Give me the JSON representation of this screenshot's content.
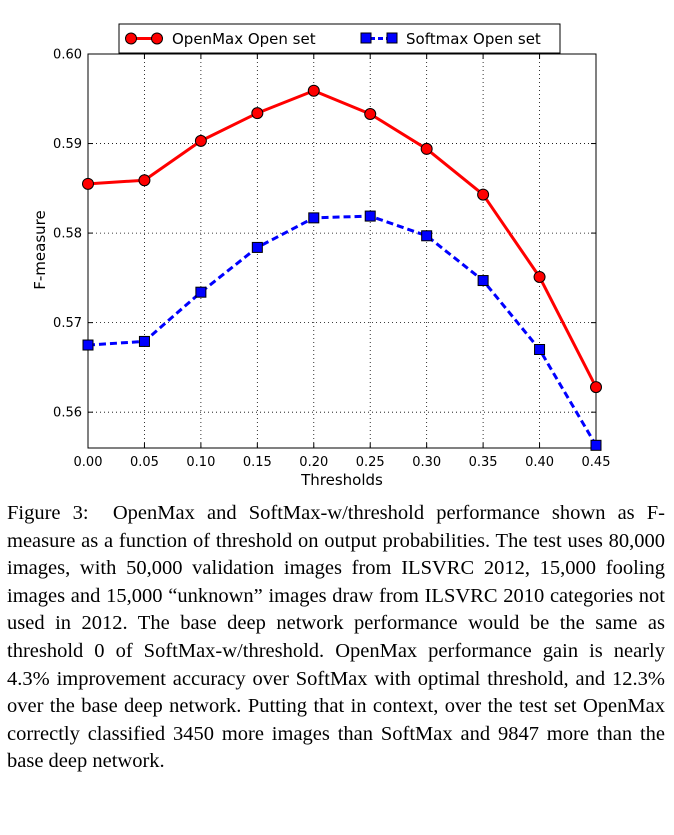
{
  "chart_data": {
    "type": "line",
    "xlabel": "Thresholds",
    "ylabel": "F-measure",
    "x": [
      0.0,
      0.05,
      0.1,
      0.15,
      0.2,
      0.25,
      0.3,
      0.35,
      0.4,
      0.45
    ],
    "x_tick_labels": [
      "0.00",
      "0.05",
      "0.10",
      "0.15",
      "0.20",
      "0.25",
      "0.30",
      "0.35",
      "0.40",
      "0.45"
    ],
    "xlim": [
      0.0,
      0.45
    ],
    "ylim": [
      0.556,
      0.6
    ],
    "y_ticks": [
      0.56,
      0.57,
      0.58,
      0.59,
      0.6
    ],
    "y_tick_labels": [
      "0.56",
      "0.57",
      "0.58",
      "0.59",
      "0.60"
    ],
    "grid": true,
    "legend_position": "top",
    "series": [
      {
        "name": "OpenMax Open set",
        "color": "#ff0000",
        "marker": "circle",
        "line_style": "solid",
        "values": [
          0.5855,
          0.5859,
          0.5903,
          0.5934,
          0.5959,
          0.5933,
          0.5894,
          0.5843,
          0.5751,
          0.5628
        ]
      },
      {
        "name": "Softmax Open set",
        "color": "#0000ff",
        "marker": "square",
        "line_style": "dashed",
        "values": [
          0.5675,
          0.5679,
          0.5734,
          0.5784,
          0.5817,
          0.5819,
          0.5797,
          0.5747,
          0.567,
          0.5563
        ]
      }
    ]
  },
  "caption": {
    "label": "Figure 3:",
    "text": "OpenMax and SoftMax-w/threshold performance shown as F-measure as a function of threshold on output probabilities. The test uses 80,000 images, with 50,000 validation images from ILSVRC 2012, 15,000 fooling images and 15,000 “unknown” images draw from ILSVRC 2010 categories not used in 2012. The base deep network performance would be the same as threshold 0 of SoftMax-w/threshold. OpenMax performance gain is nearly 4.3% improvement accuracy over SoftMax with optimal threshold, and 12.3% over the base deep network. Putting that in context, over the test set OpenMax correctly classified 3450 more images than SoftMax and 9847 more than the base deep network."
  }
}
